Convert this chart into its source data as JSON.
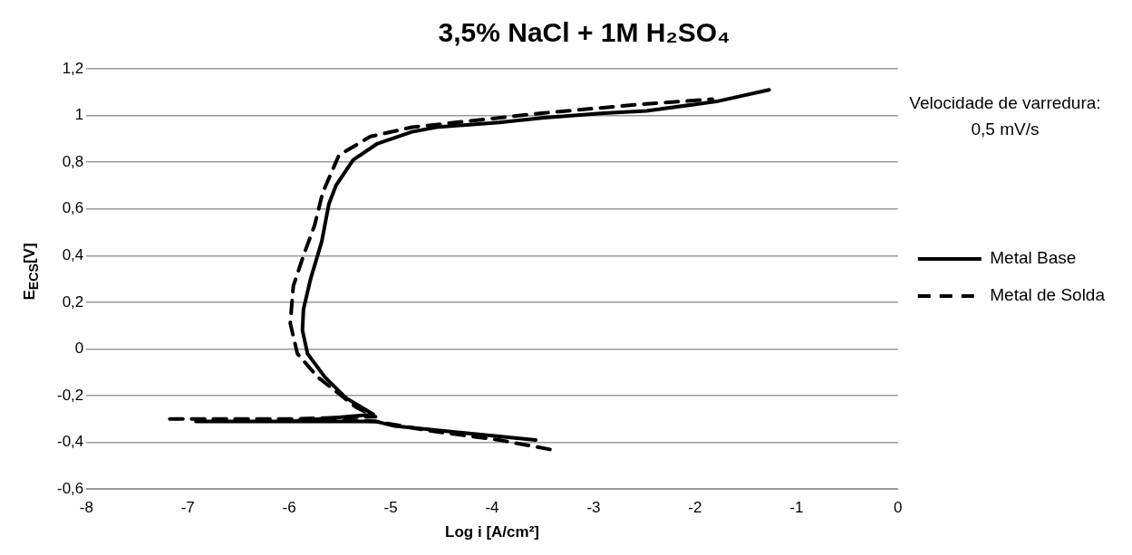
{
  "chart_data": {
    "type": "line",
    "title": "3,5% NaCl + 1M H₂SO₄",
    "xlabel": "Log i [A/cm²]",
    "ylabel": "E$_{ECS}$[V]",
    "annotations": [
      "Velocidade de varredura: 0,5 mV/s"
    ],
    "xlim": [
      -8,
      0
    ],
    "xticks": [
      -8,
      -7,
      -6,
      -5,
      -4,
      -3,
      -2,
      -1,
      0
    ],
    "ylim": [
      -0.6,
      1.2
    ],
    "yticks": [
      {
        "value": -0.6,
        "label": "-0,6"
      },
      {
        "value": -0.4,
        "label": "-0,4"
      },
      {
        "value": -0.2,
        "label": "-0,2"
      },
      {
        "value": 0,
        "label": "0"
      },
      {
        "value": 0.2,
        "label": "0,2"
      },
      {
        "value": 0.4,
        "label": "0,4"
      },
      {
        "value": 0.6,
        "label": "0,6"
      },
      {
        "value": 0.8,
        "label": "0,8"
      },
      {
        "value": 1,
        "label": "1"
      },
      {
        "value": 1.2,
        "label": "1,2"
      }
    ],
    "grid": "y",
    "legend": "right",
    "marker": "none",
    "series": [
      {
        "name": "Metal Base",
        "color": "#000000",
        "line_style": "solid",
        "x": [
          -3.57,
          -4.27,
          -4.96,
          -5.15,
          -5.99,
          -6.92,
          -5.99,
          -5.17,
          -5.44,
          -5.65,
          -5.82,
          -5.87,
          -5.86,
          -5.79,
          -5.68,
          -5.61,
          -5.54,
          -5.37,
          -5.13,
          -4.79,
          -4.55,
          -3.93,
          -3.51,
          -2.9,
          -2.48,
          -1.79,
          -1.27
        ],
        "values": [
          -0.39,
          -0.36,
          -0.33,
          -0.31,
          -0.31,
          -0.31,
          -0.31,
          -0.28,
          -0.21,
          -0.12,
          -0.02,
          0.08,
          0.17,
          0.3,
          0.46,
          0.62,
          0.7,
          0.81,
          0.88,
          0.93,
          0.95,
          0.97,
          0.99,
          1.01,
          1.02,
          1.06,
          1.11
        ]
      },
      {
        "name": "Metal de Solda",
        "color": "#000000",
        "line_style": "dashed",
        "x": [
          -3.43,
          -3.93,
          -4.62,
          -5.15,
          -6.0,
          -7.22,
          -6.0,
          -5.15,
          -5.34,
          -5.72,
          -5.92,
          -5.99,
          -5.96,
          -5.86,
          -5.75,
          -5.67,
          -5.51,
          -5.2,
          -4.79,
          -3.51,
          -2.48,
          -1.83
        ],
        "values": [
          -0.43,
          -0.39,
          -0.35,
          -0.31,
          -0.3,
          -0.3,
          -0.3,
          -0.29,
          -0.25,
          -0.12,
          -0.02,
          0.11,
          0.27,
          0.4,
          0.53,
          0.67,
          0.83,
          0.91,
          0.95,
          1.01,
          1.05,
          1.07
        ]
      }
    ]
  }
}
